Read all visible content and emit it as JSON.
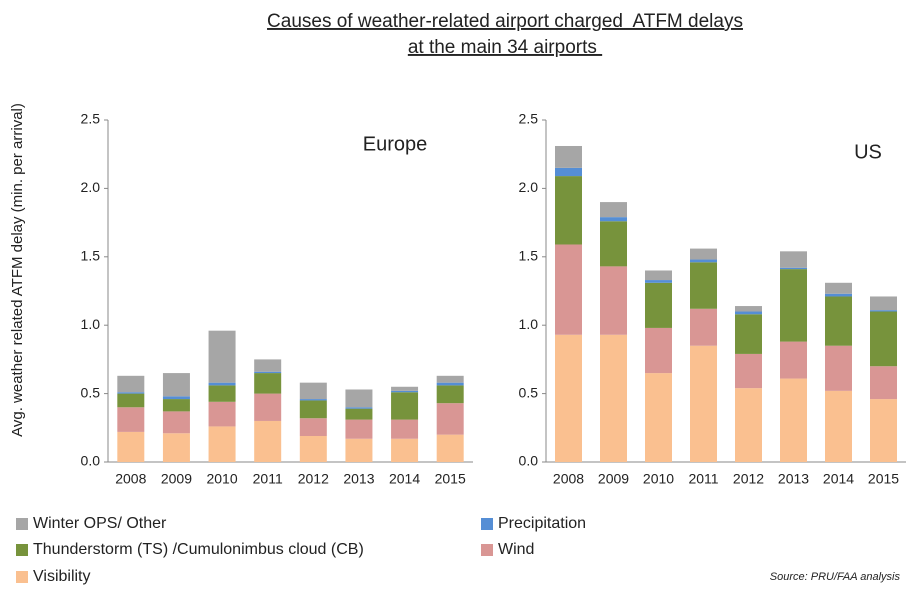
{
  "chart_data": {
    "type": "bar",
    "stacked": true,
    "title": [
      "Causes of weather-related airport charged  ATFM delays",
      "at the main 34 airports "
    ],
    "y_label": "Avg. weather related ATFM delay (min. per arrival)",
    "categories": [
      "2008",
      "2009",
      "2010",
      "2011",
      "2012",
      "2013",
      "2014",
      "2015"
    ],
    "ylim": [
      0,
      2.5
    ],
    "yticks": [
      {
        "value": 0,
        "label": "0.0"
      },
      {
        "value": 0.5,
        "label": "0.5"
      },
      {
        "value": 1,
        "label": "1.0"
      },
      {
        "value": 1.5,
        "label": "1.5"
      },
      {
        "value": 2,
        "label": "2.0"
      },
      {
        "value": 2.5,
        "label": "2.5"
      }
    ],
    "series": [
      {
        "name": "Visibility",
        "color": "#fac090"
      },
      {
        "name": "Wind",
        "color": "#d99694"
      },
      {
        "name": "Thunderstorm (TS) /Cumulonimbus cloud (CB)",
        "color": "#77933c"
      },
      {
        "name": "Precipitation",
        "color": "#558ed5"
      },
      {
        "name": "Winter OPS/ Other",
        "color": "#a6a6a6"
      }
    ],
    "panels": [
      {
        "label": "Europe",
        "values": [
          [
            0.22,
            0.21,
            0.26,
            0.3,
            0.19,
            0.17,
            0.17,
            0.2
          ],
          [
            0.18,
            0.16,
            0.18,
            0.2,
            0.13,
            0.14,
            0.14,
            0.23
          ],
          [
            0.1,
            0.09,
            0.12,
            0.15,
            0.13,
            0.08,
            0.2,
            0.13
          ],
          [
            0.01,
            0.02,
            0.02,
            0.01,
            0.01,
            0.01,
            0.01,
            0.02
          ],
          [
            0.12,
            0.17,
            0.38,
            0.09,
            0.12,
            0.13,
            0.03,
            0.05
          ]
        ]
      },
      {
        "label": "US",
        "values": [
          [
            0.93,
            0.93,
            0.65,
            0.85,
            0.54,
            0.61,
            0.52,
            0.46
          ],
          [
            0.66,
            0.5,
            0.33,
            0.27,
            0.25,
            0.27,
            0.33,
            0.24
          ],
          [
            0.5,
            0.33,
            0.33,
            0.34,
            0.29,
            0.53,
            0.36,
            0.4
          ],
          [
            0.06,
            0.03,
            0.02,
            0.02,
            0.02,
            0.01,
            0.02,
            0.01
          ],
          [
            0.16,
            0.11,
            0.07,
            0.08,
            0.04,
            0.12,
            0.08,
            0.1
          ]
        ]
      }
    ],
    "source": "Source: PRU/FAA analysis"
  }
}
